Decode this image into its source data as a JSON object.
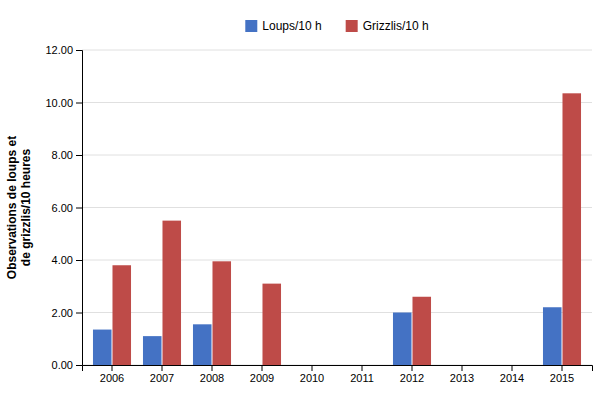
{
  "chart_data": {
    "type": "bar",
    "categories": [
      "2006",
      "2007",
      "2008",
      "2009",
      "2010",
      "2011",
      "2012",
      "2013",
      "2014",
      "2015"
    ],
    "series": [
      {
        "name": "Loups/10 h",
        "color": "#4472C4",
        "values": [
          1.35,
          1.1,
          1.55,
          0.0,
          0.0,
          0.0,
          2.0,
          0.0,
          0.0,
          2.2
        ]
      },
      {
        "name": "Grizzlis/10 h",
        "color": "#BE4B48",
        "values": [
          3.8,
          5.5,
          3.95,
          3.1,
          0.0,
          0.0,
          2.6,
          0.0,
          0.0,
          10.35
        ]
      }
    ],
    "ylabel": "Observations de loups et\nde grizzlis/10 heures",
    "ylim": [
      0,
      12.0
    ],
    "yticks": [
      {
        "value": 0,
        "label": "0.00"
      },
      {
        "value": 2,
        "label": "2.00"
      },
      {
        "value": 4,
        "label": "4.00"
      },
      {
        "value": 6,
        "label": "6.00"
      },
      {
        "value": 8,
        "label": "8.00"
      },
      {
        "value": 10,
        "label": "10.00"
      },
      {
        "value": 12,
        "label": "12.00"
      }
    ],
    "grid": true,
    "legend": "top"
  }
}
